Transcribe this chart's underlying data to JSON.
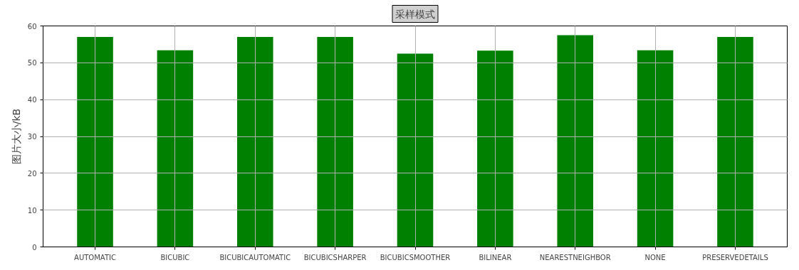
{
  "chart_data": {
    "type": "bar",
    "title": "采样模式",
    "ylabel": "图片大小/kB",
    "categories": [
      "AUTOMATIC",
      "BICUBIC",
      "BICUBICAUTOMATIC",
      "BICUBICSHARPER",
      "BICUBICSMOOTHER",
      "BILINEAR",
      "NEARESTNEIGHBOR",
      "NONE",
      "PRESERVEDETAILS"
    ],
    "values": [
      57.0,
      53.4,
      57.0,
      57.0,
      52.5,
      53.3,
      57.5,
      53.4,
      57.0
    ],
    "color": "#008000",
    "ylim": [
      0,
      60
    ],
    "yticks": [
      0,
      10,
      20,
      30,
      40,
      50,
      60
    ],
    "grid": true
  }
}
